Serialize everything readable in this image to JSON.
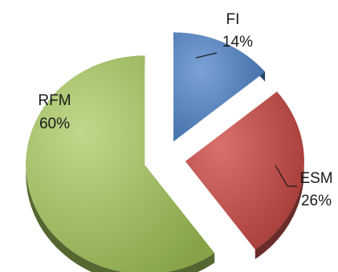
{
  "chart_data": {
    "type": "pie",
    "style": "3d-exploded",
    "title": "",
    "slices": [
      {
        "label": "FI",
        "value": 14,
        "value_label": "14%",
        "color": "#4f81bd"
      },
      {
        "label": "ESM",
        "value": 26,
        "value_label": "26%",
        "color": "#c0504d"
      },
      {
        "label": "RFM",
        "value": 60,
        "value_label": "60%",
        "color": "#9bbb59"
      }
    ]
  }
}
